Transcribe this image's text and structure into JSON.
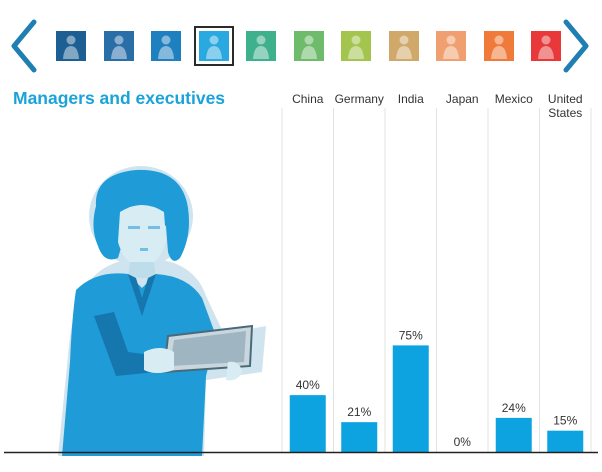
{
  "nav": {
    "prev_icon": "chevron-left-icon",
    "next_icon": "chevron-right-icon",
    "color": "#1f7fb3"
  },
  "thumbnails": [
    {
      "icon": "worker-icon",
      "color": "#1d5f93"
    },
    {
      "icon": "worker-icon",
      "color": "#2a6ea8"
    },
    {
      "icon": "worker-icon",
      "color": "#1f80bf"
    },
    {
      "icon": "manager-icon",
      "color": "#2aa8e0",
      "selected": true
    },
    {
      "icon": "worker-icon",
      "color": "#3fb08c"
    },
    {
      "icon": "worker-icon",
      "color": "#6dbb6b"
    },
    {
      "icon": "worker-icon",
      "color": "#a3c44d"
    },
    {
      "icon": "worker-icon",
      "color": "#cfa86a"
    },
    {
      "icon": "worker-icon",
      "color": "#f0a070"
    },
    {
      "icon": "worker-icon",
      "color": "#f07a3a"
    },
    {
      "icon": "worker-icon",
      "color": "#e8383a"
    }
  ],
  "section": {
    "title": "Managers and executives",
    "title_color": "#1aa3d9"
  },
  "illustration": {
    "icon": "businesswoman-with-tablet-icon",
    "color": "#1f9bd7"
  },
  "chart_data": {
    "type": "bar",
    "title": "Managers and executives",
    "categories": [
      "China",
      "Germany",
      "India",
      "Japan",
      "Mexico",
      "United States"
    ],
    "category_lines": [
      [
        "China"
      ],
      [
        "Germany"
      ],
      [
        "India"
      ],
      [
        "Japan"
      ],
      [
        "Mexico"
      ],
      [
        "United",
        "States"
      ]
    ],
    "values": [
      40,
      21,
      75,
      0,
      24,
      15
    ],
    "value_labels": [
      "40%",
      "21%",
      "75%",
      "0%",
      "24%",
      "15%"
    ],
    "unit": "%",
    "ylim": [
      0,
      100
    ],
    "bar_color": "#0da2e0",
    "grid": "vertical separators"
  }
}
